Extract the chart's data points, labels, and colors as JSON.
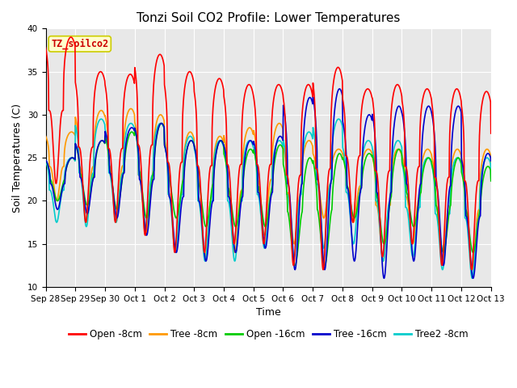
{
  "title": "Tonzi Soil CO2 Profile: Lower Temperatures",
  "xlabel": "Time",
  "ylabel": "Soil Temperatures (C)",
  "ylim": [
    10,
    40
  ],
  "annotation": "TZ_soilco2",
  "annotation_color": "#cc0000",
  "annotation_bg": "#ffffcc",
  "annotation_border": "#cccc00",
  "plot_bg": "#e8e8e8",
  "tick_labels": [
    "Sep 28",
    "Sep 29",
    "Sep 30",
    "Oct 1",
    "Oct 2",
    "Oct 3",
    "Oct 4",
    "Oct 5",
    "Oct 6",
    "Oct 7",
    "Oct 8",
    "Oct 9",
    "Oct 10",
    "Oct 11",
    "Oct 12",
    "Oct 13"
  ],
  "series": {
    "Open -8cm": {
      "color": "#ff0000",
      "lw": 1.2
    },
    "Tree -8cm": {
      "color": "#ff9900",
      "lw": 1.2
    },
    "Open -16cm": {
      "color": "#00cc00",
      "lw": 1.2
    },
    "Tree -16cm": {
      "color": "#0000cc",
      "lw": 1.2
    },
    "Tree2 -8cm": {
      "color": "#00cccc",
      "lw": 1.2
    }
  },
  "grid_color": "#ffffff",
  "title_fontsize": 11,
  "axis_fontsize": 9,
  "tick_fontsize": 7.5,
  "legend_fontsize": 8.5,
  "open8_max": [
    39,
    35,
    34.7,
    37,
    35,
    34.2,
    33.5,
    33.5,
    33.5,
    35.5,
    33,
    33.5,
    33,
    33,
    32.7,
    28.5
  ],
  "open8_min": [
    22,
    17.5,
    17.5,
    16,
    14,
    14,
    15,
    15,
    12.5,
    12,
    17.5,
    13.5,
    15,
    12.5,
    12,
    19
  ],
  "tree8_max": [
    28,
    30.5,
    30.7,
    30,
    28,
    27.5,
    28.5,
    29,
    27,
    26,
    26,
    26,
    26,
    26,
    26,
    24
  ],
  "tree8_min": [
    20,
    17.5,
    17.5,
    16,
    14,
    13.5,
    14,
    16,
    15,
    18,
    17.5,
    13,
    15,
    13,
    12,
    19
  ],
  "open16_max": [
    25,
    27,
    28,
    29,
    27,
    27,
    26,
    26.5,
    25,
    25.5,
    25.5,
    26,
    25,
    25,
    24,
    22.5
  ],
  "open16_min": [
    20,
    19.5,
    19,
    18,
    18,
    17,
    17,
    17,
    12.5,
    12.5,
    18,
    15,
    17,
    14,
    14,
    19
  ],
  "tree16_max": [
    25,
    27,
    28.5,
    29,
    27,
    27,
    27,
    27.5,
    32,
    33,
    30,
    31,
    31,
    31,
    25.5,
    25
  ],
  "tree16_min": [
    19,
    18.5,
    18,
    16,
    14,
    13,
    14,
    14.5,
    12,
    12,
    13,
    11,
    13,
    12.5,
    11,
    16.5
  ],
  "tree28_max": [
    25,
    29.5,
    29,
    29,
    27.5,
    27,
    27,
    27,
    28,
    29.5,
    27,
    27,
    25,
    25,
    25,
    23
  ],
  "tree28_min": [
    17.5,
    17,
    17.5,
    17,
    14,
    13,
    13,
    14.5,
    13.5,
    14.5,
    15,
    13,
    13.5,
    12,
    11,
    17
  ]
}
